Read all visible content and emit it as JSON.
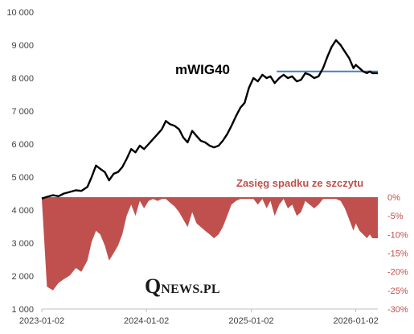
{
  "chart_data": {
    "type": "line",
    "title": "mWIG40",
    "x_tick_labels": [
      "2023-01-02",
      "2024-01-02",
      "2025-01-02",
      "2026-01-02"
    ],
    "x_range": [
      "2023-01-02",
      "2026-03-20"
    ],
    "ylim_left": [
      1000,
      10000
    ],
    "y_ticks_left": [
      "1 000",
      "2 000",
      "3 000",
      "4 000",
      "5 000",
      "6 000",
      "7 000",
      "8 000",
      "9 000",
      "10 000"
    ],
    "ylim_right": [
      -0.3,
      0.0
    ],
    "y_ticks_right": [
      "0%",
      "-5%",
      "-10%",
      "-15%",
      "-20%",
      "-25%",
      "-30%"
    ],
    "grid": false,
    "series": [
      {
        "name": "mWIG40",
        "color": "#000000",
        "axis": "left",
        "x": [
          "2023-01-02",
          "2023-01-20",
          "2023-02-10",
          "2023-03-01",
          "2023-03-20",
          "2023-04-10",
          "2023-05-01",
          "2023-05-20",
          "2023-06-10",
          "2023-06-25",
          "2023-07-10",
          "2023-07-25",
          "2023-08-10",
          "2023-08-25",
          "2023-09-10",
          "2023-09-25",
          "2023-10-10",
          "2023-10-25",
          "2023-11-10",
          "2023-11-25",
          "2023-12-10",
          "2023-12-25",
          "2024-01-10",
          "2024-01-25",
          "2024-02-10",
          "2024-02-25",
          "2024-03-10",
          "2024-03-25",
          "2024-04-10",
          "2024-04-25",
          "2024-05-10",
          "2024-05-25",
          "2024-06-10",
          "2024-06-25",
          "2024-07-10",
          "2024-07-25",
          "2024-08-10",
          "2024-08-25",
          "2024-09-10",
          "2024-09-25",
          "2024-10-10",
          "2024-10-25",
          "2024-11-10",
          "2024-11-25",
          "2024-12-10",
          "2024-12-25",
          "2025-01-10",
          "2025-01-25",
          "2025-02-10",
          "2025-02-25",
          "2025-03-10",
          "2025-03-25",
          "2025-04-10",
          "2025-04-25",
          "2025-05-10",
          "2025-05-25",
          "2025-06-10",
          "2025-06-25",
          "2025-07-10",
          "2025-07-25",
          "2025-08-10",
          "2025-08-25",
          "2025-09-10",
          "2025-09-25",
          "2025-10-10",
          "2025-10-25",
          "2025-11-10",
          "2025-11-25",
          "2025-12-10",
          "2025-12-25",
          "2026-01-02",
          "2026-01-15",
          "2026-01-28",
          "2026-02-10",
          "2026-02-20",
          "2026-03-01",
          "2026-03-10",
          "2026-03-20"
        ],
        "y": [
          4350,
          4400,
          4450,
          4420,
          4500,
          4550,
          4600,
          4580,
          4700,
          5000,
          5350,
          5250,
          5150,
          4900,
          5100,
          5150,
          5300,
          5550,
          5850,
          5750,
          5950,
          5850,
          6000,
          6150,
          6300,
          6450,
          6700,
          6600,
          6550,
          6450,
          6200,
          6050,
          6400,
          6250,
          6100,
          6050,
          5950,
          5900,
          5950,
          6100,
          6300,
          6550,
          6850,
          7100,
          7250,
          7700,
          8000,
          7900,
          8100,
          8000,
          8050,
          7850,
          8000,
          8100,
          8000,
          8050,
          7900,
          7950,
          8150,
          8100,
          8000,
          8050,
          8300,
          8650,
          8950,
          9150,
          9000,
          8800,
          8600,
          8300,
          8400,
          8300,
          8200,
          8150,
          8200,
          8150,
          8150,
          8150
        ]
      }
    ],
    "drawdown": {
      "label": "Zasięg spadku ze szczytu",
      "color": "#c0504d",
      "axis": "right",
      "x": [
        "2023-01-02",
        "2023-01-20",
        "2023-02-10",
        "2023-03-01",
        "2023-03-20",
        "2023-04-10",
        "2023-05-01",
        "2023-05-20",
        "2023-06-10",
        "2023-06-25",
        "2023-07-10",
        "2023-07-25",
        "2023-08-10",
        "2023-08-25",
        "2023-09-10",
        "2023-09-25",
        "2023-10-10",
        "2023-10-25",
        "2023-11-10",
        "2023-11-25",
        "2023-12-10",
        "2023-12-25",
        "2024-01-10",
        "2024-01-25",
        "2024-02-10",
        "2024-02-25",
        "2024-03-10",
        "2024-03-25",
        "2024-04-10",
        "2024-04-25",
        "2024-05-10",
        "2024-05-25",
        "2024-06-10",
        "2024-06-25",
        "2024-07-10",
        "2024-07-25",
        "2024-08-10",
        "2024-08-25",
        "2024-09-10",
        "2024-09-25",
        "2024-10-10",
        "2024-10-25",
        "2024-11-10",
        "2024-11-25",
        "2024-12-10",
        "2024-12-25",
        "2025-01-10",
        "2025-01-25",
        "2025-02-10",
        "2025-02-25",
        "2025-03-10",
        "2025-03-25",
        "2025-04-10",
        "2025-04-25",
        "2025-05-10",
        "2025-05-25",
        "2025-06-10",
        "2025-06-25",
        "2025-07-10",
        "2025-07-25",
        "2025-08-10",
        "2025-08-25",
        "2025-09-10",
        "2025-09-25",
        "2025-10-10",
        "2025-10-25",
        "2025-11-10",
        "2025-11-25",
        "2025-12-10",
        "2025-12-25",
        "2026-01-02",
        "2026-01-15",
        "2026-01-28",
        "2026-02-10",
        "2026-02-20",
        "2026-03-01",
        "2026-03-10",
        "2026-03-20"
      ],
      "y": [
        -0.005,
        -0.24,
        -0.25,
        -0.23,
        -0.22,
        -0.21,
        -0.19,
        -0.2,
        -0.17,
        -0.12,
        -0.09,
        -0.1,
        -0.13,
        -0.17,
        -0.15,
        -0.13,
        -0.1,
        -0.05,
        -0.02,
        -0.05,
        -0.01,
        -0.03,
        -0.01,
        -0.005,
        -0.01,
        -0.005,
        -0.005,
        -0.015,
        -0.025,
        -0.04,
        -0.06,
        -0.08,
        -0.04,
        -0.07,
        -0.08,
        -0.09,
        -0.1,
        -0.11,
        -0.1,
        -0.08,
        -0.05,
        -0.02,
        -0.01,
        -0.005,
        -0.005,
        -0.005,
        -0.005,
        -0.02,
        -0.005,
        -0.03,
        -0.01,
        -0.05,
        -0.02,
        -0.005,
        -0.03,
        -0.02,
        -0.05,
        -0.04,
        -0.01,
        -0.02,
        -0.03,
        -0.02,
        -0.005,
        -0.005,
        -0.005,
        -0.005,
        -0.01,
        -0.03,
        -0.06,
        -0.09,
        -0.07,
        -0.09,
        -0.1,
        -0.11,
        -0.1,
        -0.11,
        -0.11,
        -0.11
      ]
    },
    "reference_line": {
      "color": "#4a7ebb",
      "value": 8200,
      "x_start": "2025-04-01",
      "x_end": "2026-03-20"
    },
    "watermark": {
      "text_initial": "Q",
      "text_rest": "NEWS.PL"
    }
  }
}
